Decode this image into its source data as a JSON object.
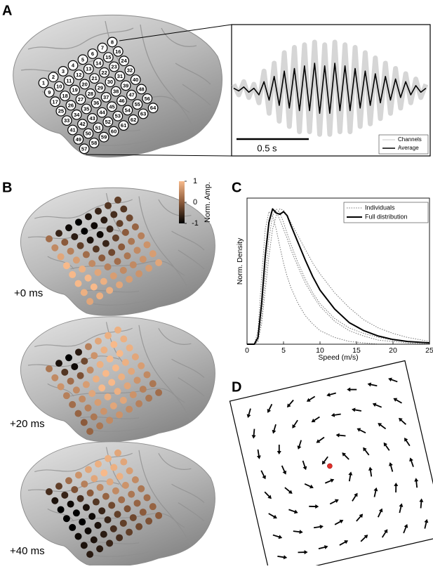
{
  "panel_labels": [
    "A",
    "B",
    "C",
    "D"
  ],
  "electrodes": {
    "labels": [
      1,
      2,
      3,
      4,
      5,
      6,
      7,
      8,
      9,
      10,
      11,
      12,
      13,
      14,
      15,
      16,
      17,
      18,
      19,
      20,
      21,
      22,
      23,
      24,
      25,
      26,
      27,
      28,
      29,
      30,
      31,
      32,
      33,
      34,
      35,
      36,
      37,
      38,
      39,
      40,
      41,
      42,
      43,
      44,
      45,
      46,
      47,
      48,
      49,
      50,
      51,
      52,
      53,
      54,
      55,
      56,
      57,
      58,
      59,
      60,
      61,
      62,
      63,
      64
    ]
  },
  "colorbar": {
    "label": "Norm. Amp.",
    "lim": [
      -1,
      1
    ],
    "ticks": [
      1,
      0,
      -1
    ],
    "colors": [
      "#000000",
      "#8b5a3b",
      "#f7b98a"
    ]
  },
  "amplitude_maps": [
    {
      "label": "+0 ms",
      "values": [
        0.2,
        -0.6,
        -0.9,
        -1,
        -0.8,
        -0.6,
        -0.4,
        -0.3,
        0.5,
        0,
        -0.7,
        -1,
        -0.9,
        -0.7,
        -0.5,
        -0.4,
        0.8,
        0.4,
        -0.3,
        -0.8,
        -0.9,
        -0.6,
        -0.3,
        -0.2,
        1,
        0.7,
        0.2,
        -0.4,
        -0.6,
        -0.3,
        0,
        0.1,
        1,
        0.9,
        0.5,
        0,
        -0.2,
        0,
        0.3,
        0.4,
        1,
        1,
        0.8,
        0.4,
        0.2,
        0.3,
        0.5,
        0.6,
        0.9,
        1,
        0.9,
        0.7,
        0.5,
        0.5,
        0.6,
        0.7,
        0.8,
        0.9,
        0.9,
        0.8,
        0.7,
        0.6,
        0.7,
        0.8
      ]
    },
    {
      "label": "+20 ms",
      "values": [
        0.3,
        -0.8,
        -1,
        -0.7,
        0.4,
        0.8,
        0.9,
        0.9,
        0.5,
        -0.4,
        -0.9,
        -0.2,
        0.6,
        0.9,
        1,
        0.9,
        0.6,
        0.2,
        -0.1,
        0.5,
        0.9,
        1,
        1,
        0.9,
        0.4,
        0.5,
        0.7,
        0.9,
        1,
        1,
        0.9,
        0.8,
        0.2,
        0.5,
        0.8,
        1,
        1,
        0.9,
        0.8,
        0.7,
        0.1,
        0.4,
        0.7,
        0.9,
        0.9,
        0.8,
        0.6,
        0.5,
        0,
        0.3,
        0.6,
        0.8,
        0.8,
        0.6,
        0.4,
        0.3,
        0.1,
        0.3,
        0.5,
        0.6,
        0.5,
        0.4,
        0.3,
        0.2
      ]
    },
    {
      "label": "+40 ms",
      "values": [
        -0.5,
        -0.3,
        0.2,
        0.6,
        0.8,
        0.9,
        0.9,
        0.8,
        -0.8,
        -0.6,
        -0.1,
        0.4,
        0.8,
        1,
        0.9,
        0.8,
        -1,
        -0.9,
        -0.5,
        0,
        0.5,
        0.8,
        0.9,
        0.7,
        -1,
        -1,
        -0.8,
        -0.4,
        0.1,
        0.5,
        0.6,
        0.5,
        -1,
        -1,
        -0.9,
        -0.6,
        -0.2,
        0.2,
        0.3,
        0.3,
        -0.9,
        -0.9,
        -0.8,
        -0.6,
        -0.3,
        -0.1,
        0.1,
        0.2,
        -0.8,
        -0.8,
        -0.7,
        -0.5,
        -0.3,
        -0.2,
        0,
        0.1,
        -0.7,
        -0.7,
        -0.6,
        -0.5,
        -0.3,
        -0.2,
        -0.1,
        0
      ]
    }
  ],
  "chart_data": [
    {
      "type": "line",
      "x": [
        0,
        0.035,
        0.07,
        0.105,
        0.14,
        0.175,
        0.21,
        0.245,
        0.28,
        0.315,
        0.35,
        0.385,
        0.42,
        0.455,
        0.49,
        0.525,
        0.56,
        0.595,
        0.63,
        0.665,
        0.7,
        0.735,
        0.77,
        0.805,
        0.84,
        0.875,
        0.91,
        0.945,
        0.98,
        1.015,
        1.05,
        1.085,
        1.12,
        1.155,
        1.19,
        1.225,
        1.26,
        1.295,
        1.33
      ],
      "series": [
        {
          "name": "Channels",
          "color": "#c8c8c8",
          "values": [
            0.2,
            -0.2,
            0.3,
            -0.3,
            0.2,
            -0.5,
            0.7,
            -0.9,
            1.0,
            -1.2,
            1.4,
            -1.4,
            1.6,
            -1.6,
            1.7,
            -1.6,
            1.8,
            -1.7,
            1.7,
            -1.7,
            1.8,
            -1.6,
            1.7,
            -1.6,
            1.6,
            -1.4,
            1.4,
            -1.3,
            1.2,
            -1.1,
            1.0,
            -0.9,
            0.8,
            -0.7,
            0.6,
            -0.5,
            0.4,
            -0.3,
            0.2
          ]
        },
        {
          "name": "Average",
          "color": "#000000",
          "values": [
            0.05,
            -0.05,
            0.1,
            -0.1,
            0.05,
            -0.2,
            0.3,
            -0.4,
            0.5,
            -0.6,
            0.7,
            -0.7,
            0.8,
            -0.8,
            0.9,
            -0.8,
            1.0,
            -0.9,
            0.9,
            -0.9,
            1.0,
            -0.8,
            0.9,
            -0.8,
            0.8,
            -0.7,
            0.7,
            -0.6,
            0.6,
            -0.5,
            0.5,
            -0.4,
            0.4,
            -0.3,
            0.3,
            -0.2,
            0.15,
            -0.1,
            0.05
          ]
        }
      ],
      "xlim": [
        0,
        1.35
      ],
      "ylim": [
        -2.2,
        2.2
      ],
      "scale_bar": {
        "value": 0.5,
        "label": "0.5 s"
      }
    },
    {
      "type": "line",
      "x": [
        0,
        1,
        1.5,
        2,
        2.5,
        3,
        3.5,
        4,
        4.5,
        5,
        5.5,
        6,
        7,
        8,
        9,
        10,
        12,
        14,
        16,
        18,
        20,
        22,
        25
      ],
      "x_label": "Speed (m/s)",
      "y_label": "Norm. Density",
      "series": [
        {
          "name": "Individuals",
          "color": "#777777",
          "style": "dotted",
          "values": [
            0,
            0,
            0.1,
            0.5,
            0.85,
            0.98,
            0.95,
            0.85,
            0.72,
            0.6,
            0.5,
            0.42,
            0.3,
            0.21,
            0.15,
            0.1,
            0.05,
            0.02,
            0.01,
            0,
            0,
            0,
            0
          ]
        },
        {
          "name": "Individuals",
          "color": "#777777",
          "style": "dotted",
          "values": [
            0,
            0,
            0.05,
            0.35,
            0.7,
            0.92,
            1.0,
            0.98,
            0.92,
            0.85,
            0.78,
            0.7,
            0.57,
            0.45,
            0.36,
            0.28,
            0.17,
            0.1,
            0.06,
            0.03,
            0.02,
            0.01,
            0
          ]
        },
        {
          "name": "Individuals",
          "color": "#777777",
          "style": "dotted",
          "values": [
            0,
            0,
            0.02,
            0.15,
            0.4,
            0.65,
            0.85,
            0.95,
            1.0,
            0.99,
            0.95,
            0.9,
            0.8,
            0.7,
            0.6,
            0.52,
            0.38,
            0.27,
            0.18,
            0.12,
            0.08,
            0.05,
            0.02
          ]
        },
        {
          "name": "Individuals",
          "color": "#777777",
          "style": "dotted",
          "values": [
            0,
            0,
            0.03,
            0.2,
            0.5,
            0.78,
            0.95,
            1.0,
            0.97,
            0.9,
            0.82,
            0.74,
            0.6,
            0.48,
            0.38,
            0.3,
            0.19,
            0.12,
            0.08,
            0.05,
            0.03,
            0.02,
            0.01
          ]
        },
        {
          "name": "Full distribution",
          "color": "#000000",
          "style": "solid",
          "values": [
            0,
            0,
            0.05,
            0.3,
            0.65,
            0.9,
            1.0,
            0.97,
            0.96,
            0.98,
            0.95,
            0.88,
            0.75,
            0.62,
            0.5,
            0.4,
            0.26,
            0.16,
            0.1,
            0.06,
            0.035,
            0.02,
            0.01
          ]
        }
      ],
      "xlim": [
        0,
        25
      ],
      "xticks": [
        0,
        5,
        10,
        15,
        20,
        25
      ],
      "ylim": [
        0,
        1.08
      ],
      "legend": "top-right"
    }
  ]
}
